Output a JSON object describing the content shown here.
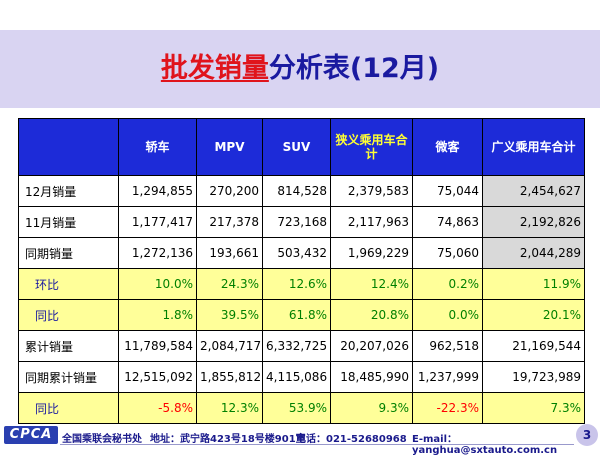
{
  "title": {
    "part1": "批发销量",
    "part2": "分析表(12月)"
  },
  "table": {
    "headers": [
      "",
      "轿车",
      "MPV",
      "SUV",
      "狭义乘用车合计",
      "微客",
      "广义乘用车合计"
    ],
    "rows": [
      {
        "label": "12月销量",
        "values": [
          "1,294,855",
          "270,200",
          "814,528",
          "2,379,583",
          "75,044",
          "2,454,627"
        ]
      },
      {
        "label": "11月销量",
        "values": [
          "1,177,417",
          "217,378",
          "723,168",
          "2,117,963",
          "74,863",
          "2,192,826"
        ]
      },
      {
        "label": "同期销量",
        "values": [
          "1,272,136",
          "193,661",
          "503,432",
          "1,969,229",
          "75,060",
          "2,044,289"
        ]
      },
      {
        "label": "环比",
        "values": [
          "10.0%",
          "24.3%",
          "12.6%",
          "12.4%",
          "0.2%",
          "11.9%"
        ]
      },
      {
        "label": "同比",
        "values": [
          "1.8%",
          "39.5%",
          "61.8%",
          "20.8%",
          "0.0%",
          "20.1%"
        ]
      },
      {
        "label": "累计销量",
        "values": [
          "11,789,584",
          "2,084,717",
          "6,332,725",
          "20,207,026",
          "962,518",
          "21,169,544"
        ]
      },
      {
        "label": "同期累计销量",
        "values": [
          "12,515,092",
          "1,855,812",
          "4,115,086",
          "18,485,990",
          "1,237,999",
          "19,723,989"
        ]
      },
      {
        "label": "同比",
        "values": [
          "-5.8%",
          "12.3%",
          "53.9%",
          "9.3%",
          "-22.3%",
          "7.3%"
        ]
      }
    ]
  },
  "footer": {
    "logo": "CPCA",
    "org": "全国乘联会秘书处",
    "address": "地址：武宁路423号18号楼901室",
    "phone": "电话：021-52680968",
    "email": "E-mail：yanghua@sxtauto.com.cn",
    "page": "3"
  },
  "colors": {
    "header_bg": "#1d2bd8",
    "yellow_row": "#ffff99",
    "positive": "#008000",
    "negative": "#ff0000",
    "title_red": "#e0141c",
    "title_blue": "#1a1aa0"
  }
}
